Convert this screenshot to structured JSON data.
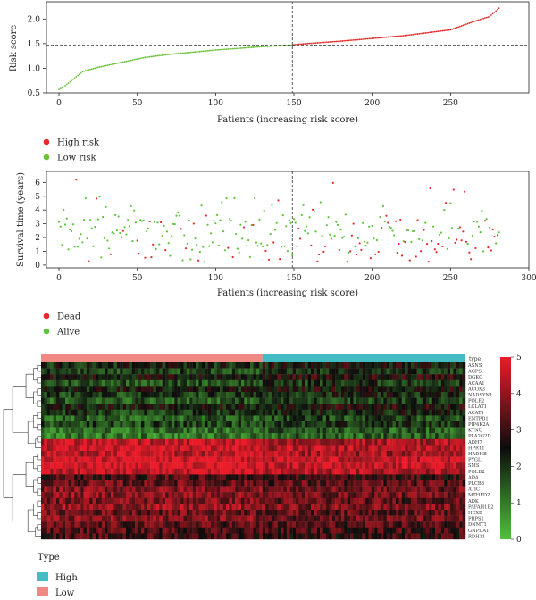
{
  "colors": {
    "high": "#e32b2b",
    "low": "#6ac13a",
    "dead": "#e32b2b",
    "alive": "#5cc43a",
    "type_high": "#43bcc4",
    "type_low": "#f08883"
  },
  "chart_data": [
    {
      "type": "scatter",
      "id": "risk-score",
      "xlabel": "Patients (increasing risk score)",
      "ylabel": "Risk score",
      "xlim": [
        -8,
        300
      ],
      "ylim": [
        0.5,
        2.35
      ],
      "xticks": [
        0,
        50,
        100,
        150,
        200,
        250
      ],
      "yticks": [
        0.5,
        1.0,
        1.5,
        2.0
      ],
      "ytick_labels": [
        "0.5",
        "1.0",
        "1.5",
        "2.0"
      ],
      "n_patients": 282,
      "cutoff_index": 149,
      "cutoff_value": 1.47,
      "anchors_x": [
        0,
        3,
        8,
        15,
        25,
        40,
        55,
        70,
        100,
        130,
        149,
        150,
        180,
        220,
        250,
        265,
        275,
        282
      ],
      "anchors_y": [
        0.57,
        0.62,
        0.75,
        0.93,
        1.02,
        1.12,
        1.22,
        1.28,
        1.37,
        1.44,
        1.47,
        1.48,
        1.55,
        1.66,
        1.78,
        1.95,
        2.05,
        2.25
      ],
      "legend": [
        "High risk",
        "Low risk"
      ]
    },
    {
      "type": "scatter",
      "id": "survival",
      "xlabel": "Patients (increasing risk score)",
      "ylabel": "Survival time (years)",
      "xlim": [
        -8,
        300
      ],
      "ylim": [
        -0.2,
        6.8
      ],
      "xticks": [
        0,
        50,
        100,
        150,
        200,
        250,
        300
      ],
      "yticks": [
        0,
        1,
        2,
        3,
        4,
        5,
        6
      ],
      "cutoff_index": 149,
      "legend": [
        "Dead",
        "Alive"
      ]
    },
    {
      "type": "heatmap",
      "id": "expression-heatmap",
      "annotation_label": "type",
      "genes": [
        "ASNS",
        "AGPS",
        "DGKQ",
        "ACAA1",
        "ACOX3",
        "NADSYN1",
        "POLE2",
        "LCLAT1",
        "ACAT1",
        "ENTPD1",
        "PIP4K2A",
        "KYNU",
        "PLA2G2D",
        "ADH7",
        "HPRT1",
        "HADHB",
        "PYGL",
        "SMS",
        "POLD2",
        "ADA",
        "PLCB3",
        "ATIC",
        "MTHFD2",
        "ADK",
        "PAFAH1B2",
        "HEXB",
        "PRPS1",
        "DNMT1",
        "GNPDA1",
        "RDH11"
      ],
      "row_means": [
        2.3,
        1.9,
        2.6,
        1.8,
        2.4,
        2.0,
        1.7,
        2.5,
        2.1,
        1.6,
        1.9,
        1.3,
        1.2,
        4.4,
        4.5,
        4.3,
        4.7,
        4.8,
        4.5,
        3.0,
        3.4,
        3.7,
        3.8,
        3.6,
        3.9,
        3.5,
        3.7,
        3.3,
        3.2,
        3.0
      ],
      "colorbar_ticks": [
        0,
        1,
        2,
        3,
        4,
        5
      ],
      "colorbar_labels": [
        "0",
        "1",
        "2",
        "3",
        "4",
        "5"
      ],
      "vmin": 0,
      "vmax": 5,
      "n_samples": 140,
      "type_split_index": 73,
      "legend_title": "Type",
      "legend": [
        "High",
        "Low"
      ]
    }
  ]
}
